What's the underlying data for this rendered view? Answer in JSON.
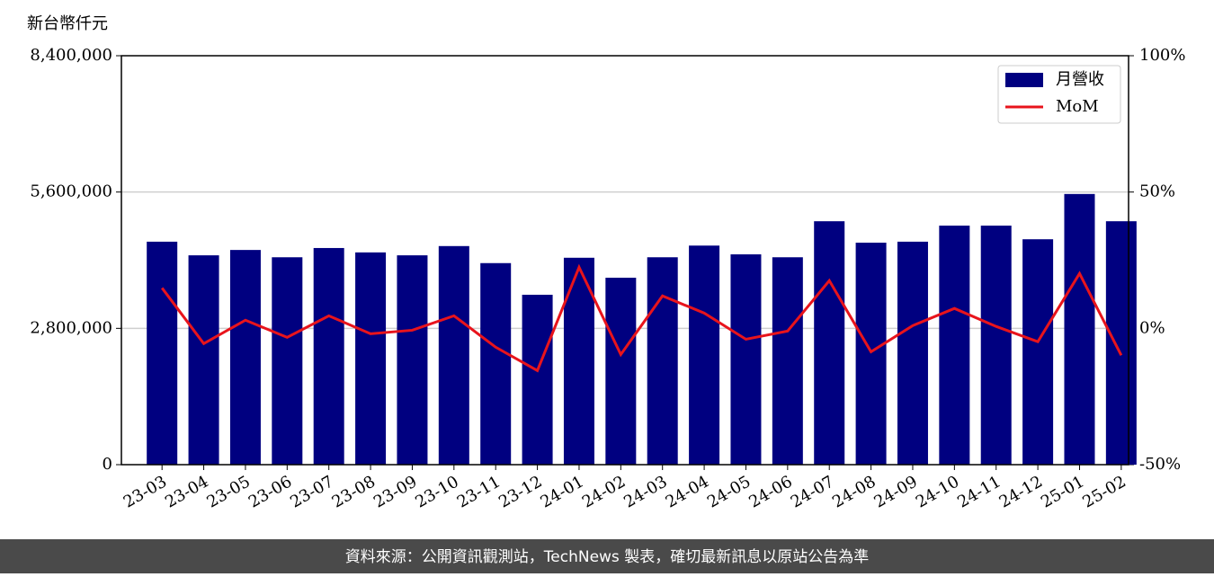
{
  "chart_data": {
    "type": "bar_line",
    "y_label": "新台幣仟元",
    "footer": "資料來源：公開資訊觀測站，TechNews 製表，確切最新訊息以原站公告為準",
    "categories": [
      "23-03",
      "23-04",
      "23-05",
      "23-06",
      "23-07",
      "23-08",
      "23-09",
      "23-10",
      "23-11",
      "23-12",
      "24-01",
      "24-02",
      "24-03",
      "24-04",
      "24-05",
      "24-06",
      "24-07",
      "24-08",
      "24-09",
      "24-10",
      "24-11",
      "24-12",
      "25-01",
      "25-02"
    ],
    "series": [
      {
        "name": "月營收",
        "color": "#000080",
        "type": "bar",
        "values": [
          4580000,
          4300000,
          4410000,
          4260000,
          4450000,
          4360000,
          4300000,
          4490000,
          4140000,
          3490000,
          4250000,
          3840000,
          4260000,
          4500000,
          4320000,
          4260000,
          5000000,
          4560000,
          4580000,
          4910000,
          4910000,
          4630000,
          5560000,
          5000000
        ]
      },
      {
        "name": "MoM",
        "color": "#e8141c",
        "type": "line",
        "axis": "y2",
        "values": [
          14.8,
          -5.6,
          3.0,
          -3.3,
          4.6,
          -2.0,
          -0.7,
          4.6,
          -6.9,
          -15.5,
          22.4,
          -9.6,
          11.9,
          5.6,
          -4.0,
          -1.0,
          17.5,
          -8.6,
          1.0,
          7.3,
          0.7,
          -4.9,
          20.1,
          -9.9
        ]
      }
    ],
    "ylim": [
      0,
      8400000
    ],
    "yticks": [
      0,
      {
        "value": 2800000,
        "label": "2,800,000"
      },
      {
        "value": 5600000,
        "label": "5,600,000"
      },
      {
        "value": 8400000,
        "label": "8,400,000"
      }
    ],
    "y2lim": [
      -50,
      100
    ],
    "y2ticks": [
      {
        "value": -50,
        "label": "-50%"
      },
      {
        "value": 0,
        "label": "0%"
      },
      {
        "value": 50,
        "label": "50%"
      },
      {
        "value": 100,
        "label": "100%"
      }
    ],
    "grid": true,
    "legend": "upper right"
  }
}
